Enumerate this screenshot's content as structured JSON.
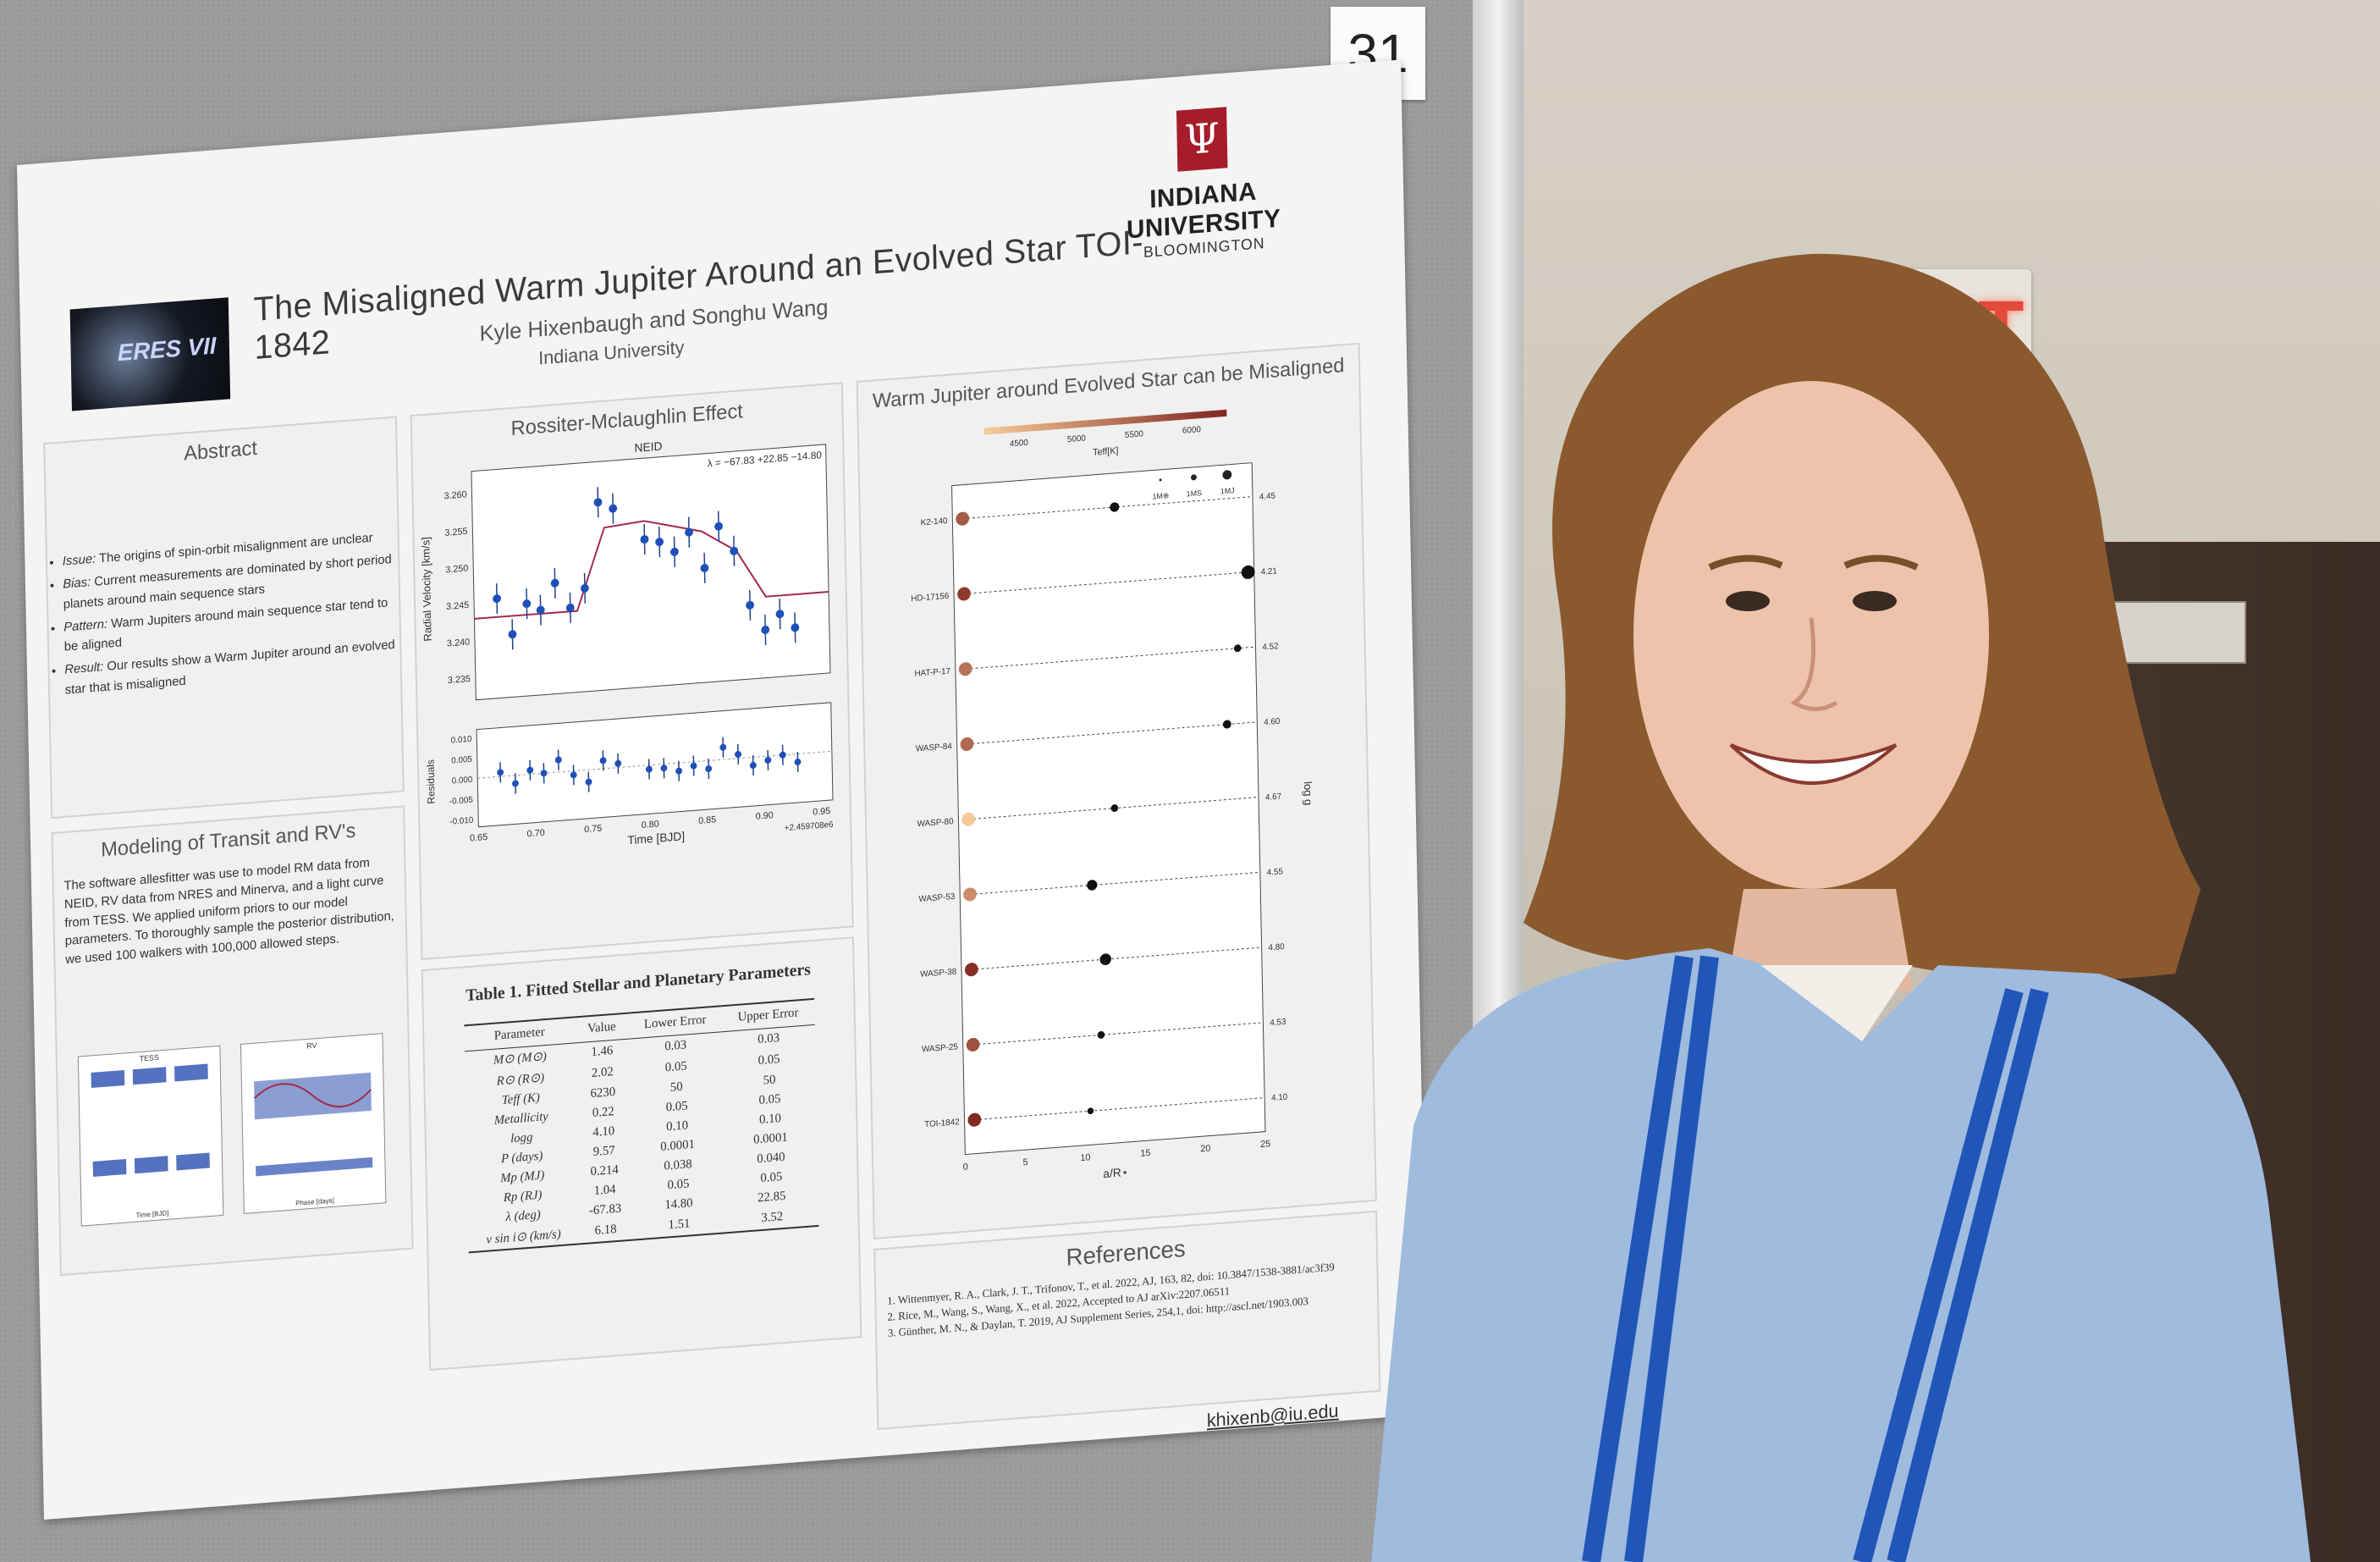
{
  "scene": {
    "booth_number": "31",
    "exit_sign": "EXIT"
  },
  "poster": {
    "title": "The Misaligned Warm Jupiter Around an Evolved Star TOI-1842",
    "authors": "Kyle Hixenbaugh and Songhu Wang",
    "affiliation": "Indiana University",
    "conference_logo": "ERES VII",
    "university": {
      "name": "INDIANA UNIVERSITY",
      "campus": "BLOOMINGTON"
    },
    "email": "khixenb@iu.edu",
    "abstract": {
      "heading": "Abstract",
      "items": [
        {
          "label": "Issue:",
          "text": "The origins of spin-orbit misalignment are unclear"
        },
        {
          "label": "Bias:",
          "text": "Current measurements are dominated by short period planets around main sequence stars"
        },
        {
          "label": "Pattern:",
          "text": "Warm Jupiters around main sequence star tend to be aligned"
        },
        {
          "label": "Result:",
          "text": "Our results show a Warm Jupiter around an evolved star that is misaligned"
        }
      ]
    },
    "modeling": {
      "heading": "Modeling of Transit and RV's",
      "text": "The software allesfitter was use to model RM data from NEID, RV data from NRES and Minerva, and a light curve from TESS.  We applied uniform priors to our model parameters. To thoroughly sample the posterior distribution, we used 100 walkers with 100,000 allowed steps.",
      "plot_labels": {
        "tess": "TESS",
        "rv": "RV",
        "time_label": "Time [BJD]",
        "phase_label": "Phase [days]"
      }
    },
    "rm_panel": {
      "heading": "Rossiter-Mclaughlin Effect"
    },
    "table": {
      "title": "Table 1.  Fitted Stellar and Planetary Parameters",
      "columns": [
        "Parameter",
        "Value",
        "Lower Error",
        "Upper Error"
      ],
      "rows": [
        [
          "M⊙ (M⊙)",
          "1.46",
          "0.03",
          "0.03"
        ],
        [
          "R⊙ (R⊙)",
          "2.02",
          "0.05",
          "0.05"
        ],
        [
          "Teff (K)",
          "6230",
          "50",
          "50"
        ],
        [
          "Metallicity",
          "0.22",
          "0.05",
          "0.05"
        ],
        [
          "logg",
          "4.10",
          "0.10",
          "0.10"
        ],
        [
          "P (days)",
          "9.57",
          "0.0001",
          "0.0001"
        ],
        [
          "Mp (MJ)",
          "0.214",
          "0.038",
          "0.040"
        ],
        [
          "Rp (RJ)",
          "1.04",
          "0.05",
          "0.05"
        ],
        [
          "λ (deg)",
          "-67.83",
          "14.80",
          "22.85"
        ],
        [
          "v sin i⊙ (km/s)",
          "6.18",
          "1.51",
          "3.52"
        ]
      ]
    },
    "align_panel": {
      "heading": "Warm Jupiter around Evolved Star can be Misaligned"
    },
    "references": {
      "heading": "References",
      "items": [
        "Wittenmyer, R. A., Clark, J. T., Trifonov, T., et al. 2022, AJ, 163, 82, doi: 10.3847/1538-3881/ac3f39",
        "Rice, M., Wang, S., Wang, X., et al. 2022, Accepted to AJ arXiv:2207.06511",
        "Günther, M. N., & Daylan, T. 2019, AJ Supplement Series, 254,1, doi: http://ascl.net/1903.003"
      ]
    }
  },
  "chart_data": [
    {
      "type": "scatter",
      "title": "NEID",
      "annotation": "λ = −67.83 +22.85 −14.80",
      "xlabel": "Time [BJD]",
      "ylabel": "Radial Velocity [km/s]",
      "residual_label": "Residuals",
      "x_offset_label": "+2.459708e6",
      "xlim": [
        0.65,
        0.96
      ],
      "ylim": [
        3.232,
        3.263
      ],
      "xticks": [
        "0.65",
        "0.70",
        "0.75",
        "0.80",
        "0.85",
        "0.90",
        "0.95"
      ],
      "yticks": [
        "3.235",
        "3.240",
        "3.245",
        "3.250",
        "3.255",
        "3.260"
      ],
      "residual_ticks": [
        "0.010",
        "0.005",
        "0.000",
        "-0.005",
        "-0.010"
      ],
      "points": [
        {
          "x": 0.67,
          "y": 3.2455
        },
        {
          "x": 0.683,
          "y": 3.2405
        },
        {
          "x": 0.696,
          "y": 3.2445
        },
        {
          "x": 0.708,
          "y": 3.2435
        },
        {
          "x": 0.721,
          "y": 3.247
        },
        {
          "x": 0.734,
          "y": 3.2435
        },
        {
          "x": 0.747,
          "y": 3.246
        },
        {
          "x": 0.76,
          "y": 3.2575
        },
        {
          "x": 0.773,
          "y": 3.2565
        },
        {
          "x": 0.8,
          "y": 3.252
        },
        {
          "x": 0.813,
          "y": 3.2515
        },
        {
          "x": 0.826,
          "y": 3.25
        },
        {
          "x": 0.839,
          "y": 3.2525
        },
        {
          "x": 0.852,
          "y": 3.2475
        },
        {
          "x": 0.865,
          "y": 3.253
        },
        {
          "x": 0.878,
          "y": 3.2495
        },
        {
          "x": 0.891,
          "y": 3.242
        },
        {
          "x": 0.904,
          "y": 3.2385
        },
        {
          "x": 0.917,
          "y": 3.2405
        },
        {
          "x": 0.93,
          "y": 3.2385
        }
      ],
      "model": [
        {
          "x": 0.65,
          "y": 3.243
        },
        {
          "x": 0.74,
          "y": 3.243
        },
        {
          "x": 0.765,
          "y": 3.254
        },
        {
          "x": 0.8,
          "y": 3.2545
        },
        {
          "x": 0.85,
          "y": 3.2525
        },
        {
          "x": 0.88,
          "y": 3.2495
        },
        {
          "x": 0.905,
          "y": 3.243
        },
        {
          "x": 0.96,
          "y": 3.243
        }
      ],
      "residuals": [
        0.001,
        -0.002,
        0.001,
        0.0,
        0.003,
        -0.001,
        -0.003,
        0.002,
        0.001,
        -0.001,
        -0.001,
        -0.002,
        -0.001,
        -0.002,
        0.003,
        0.001,
        -0.002,
        -0.001,
        0.0,
        -0.002
      ]
    },
    {
      "type": "scatter",
      "title": "Warm Jupiter around Evolved Star can be Misaligned",
      "xlabel": "a/R⋆",
      "ylabel": "log g",
      "colorbar_label": "Teff[K]",
      "colorbar_ticks": [
        "4500",
        "5000",
        "5500",
        "6000"
      ],
      "legend": [
        "1M⊕",
        "1MS",
        "1MJ"
      ],
      "xlim": [
        0,
        25
      ],
      "xticks": [
        "0",
        "5",
        "10",
        "15",
        "20",
        "25"
      ],
      "systems": [
        {
          "name": "K2-140",
          "logg": "4.45",
          "ar": 13.5,
          "teff": 5600,
          "mass": 0.6
        },
        {
          "name": "HD-17156",
          "logg": "4.21",
          "ar": 24.5,
          "teff": 6000,
          "mass": 1.0
        },
        {
          "name": "HAT-P-17",
          "logg": "4.52",
          "ar": 23.5,
          "teff": 5300,
          "mass": 0.4
        },
        {
          "name": "WASP-84",
          "logg": "4.60",
          "ar": 22.5,
          "teff": 5400,
          "mass": 0.5
        },
        {
          "name": "WASP-80",
          "logg": "4.67",
          "ar": 13.0,
          "teff": 4200,
          "mass": 0.4
        },
        {
          "name": "WASP-53",
          "logg": "4.55",
          "ar": 11.0,
          "teff": 4950,
          "mass": 0.7
        },
        {
          "name": "WASP-38",
          "logg": "4.80",
          "ar": 12.0,
          "teff": 6150,
          "mass": 0.8
        },
        {
          "name": "WASP-25",
          "logg": "4.53",
          "ar": 11.5,
          "teff": 5700,
          "mass": 0.4
        },
        {
          "name": "TOI-1842",
          "logg": "4.10",
          "ar": 10.5,
          "teff": 6230,
          "mass": 0.3
        }
      ]
    }
  ]
}
